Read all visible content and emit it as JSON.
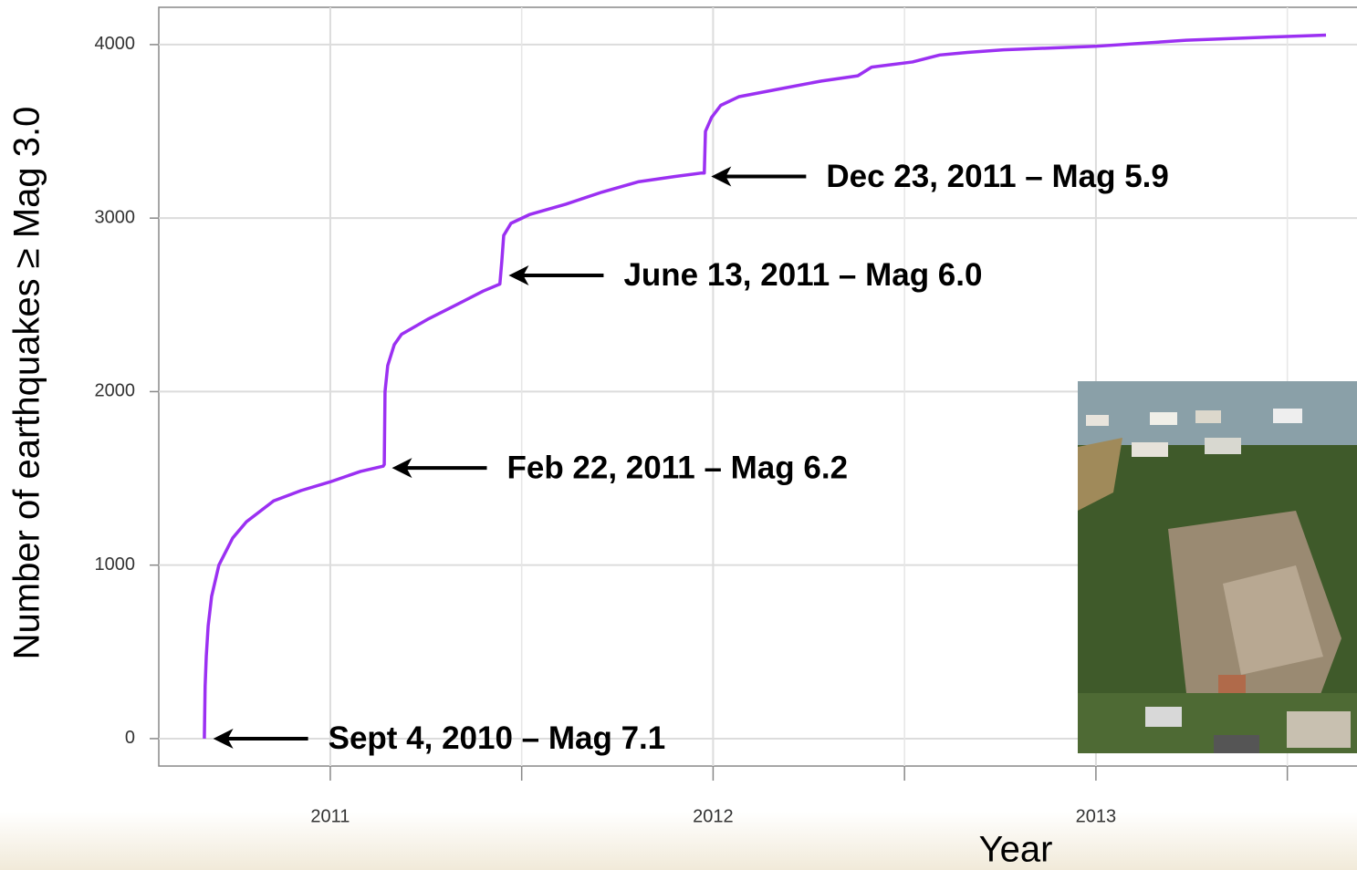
{
  "chart_data": {
    "type": "line",
    "x_label": "Year",
    "y_label": "Number of earthquakes ≥ Mag 3.0",
    "color": "#9b30f2",
    "x": [
      2010.671,
      2010.673,
      2010.676,
      2010.681,
      2010.69,
      2010.709,
      2010.745,
      2010.781,
      2010.852,
      2010.924,
      2011.0,
      2011.079,
      2011.138,
      2011.141,
      2011.143,
      2011.15,
      2011.167,
      2011.186,
      2011.257,
      2011.329,
      2011.4,
      2011.443,
      2011.448,
      2011.453,
      2011.472,
      2011.52,
      2011.615,
      2011.71,
      2011.806,
      2011.901,
      2011.97,
      2011.977,
      2011.98,
      2011.996,
      2012.02,
      2012.068,
      2012.163,
      2012.283,
      2012.378,
      2012.414,
      2012.521,
      2012.592,
      2012.664,
      2012.759,
      2012.998,
      2013.236,
      2013.474,
      2013.601
    ],
    "values": [
      0,
      300,
      473,
      650,
      820,
      1000,
      1156,
      1250,
      1370,
      1430,
      1480,
      1540,
      1570,
      1580,
      2000,
      2150,
      2270,
      2330,
      2420,
      2500,
      2580,
      2620,
      2750,
      2900,
      2970,
      3020,
      3080,
      3150,
      3210,
      3240,
      3260,
      3260,
      3500,
      3580,
      3650,
      3700,
      3740,
      3790,
      3820,
      3870,
      3900,
      3940,
      3955,
      3970,
      3990,
      4025,
      4045,
      4055
    ],
    "xlim": [
      2010.552,
      2013.682
    ],
    "xticks": [
      2011,
      2012,
      2013
    ],
    "xminor_ticks": [
      2011.5,
      2012.5,
      2013.5
    ],
    "ylim": [
      -158,
      4215
    ],
    "yticks": [
      0,
      1000,
      2000,
      3000,
      4000
    ],
    "grid": true,
    "annotations": [
      {
        "text": "Sept 4, 2010 – Mag 7.1",
        "x": 2010.675,
        "y": 0
      },
      {
        "text": "Feb 22, 2011 – Mag 6.2",
        "x": 2011.142,
        "y": 1560
      },
      {
        "text": "June 13, 2011 – Mag 6.0",
        "x": 2011.447,
        "y": 2670
      },
      {
        "text": "Dec 23, 2011 – Mag 5.9",
        "x": 2011.976,
        "y": 3240
      }
    ]
  }
}
